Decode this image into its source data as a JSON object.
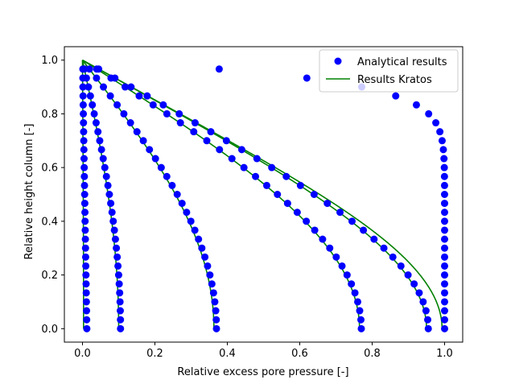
{
  "chart_data": {
    "type": "scatter",
    "title": "",
    "xlabel": "Relative excess pore pressure [-]",
    "ylabel": "Relative height column [-]",
    "xlim": [
      -0.05,
      1.05
    ],
    "ylim": [
      -0.05,
      1.05
    ],
    "xticks": [
      0.0,
      0.2,
      0.4,
      0.6,
      0.8,
      1.0
    ],
    "yticks": [
      0.0,
      0.2,
      0.4,
      0.6,
      0.8,
      1.0
    ],
    "xtick_labels": [
      "0.0",
      "0.2",
      "0.4",
      "0.6",
      "0.8",
      "1.0"
    ],
    "ytick_labels": [
      "0.0",
      "0.2",
      "0.4",
      "0.6",
      "0.8",
      "1.0"
    ],
    "grid": false,
    "legend_position": "top-right",
    "legend": [
      {
        "label": "Analytical results",
        "marker": "circle",
        "color": "#0000ff"
      },
      {
        "label": "Results Kratos",
        "marker": "line",
        "color": "#008000"
      }
    ],
    "colors": {
      "analytical": "#0000ff",
      "kratos": "#008000"
    },
    "y_points": [
      0.0,
      0.0333,
      0.0667,
      0.1,
      0.1333,
      0.1667,
      0.2,
      0.2333,
      0.2667,
      0.3,
      0.3333,
      0.3667,
      0.4,
      0.4333,
      0.4667,
      0.5,
      0.5333,
      0.5667,
      0.6,
      0.6333,
      0.6667,
      0.7,
      0.7333,
      0.7667,
      0.8,
      0.8333,
      0.8667,
      0.9,
      0.9333,
      0.9667
    ],
    "analytical_series": [
      {
        "bottom_pressure": 0.012,
        "nearly_zero": true
      },
      {
        "bottom_pressure": 0.105
      },
      {
        "bottom_pressure": 0.37
      },
      {
        "bottom_pressure": 0.77
      },
      {
        "bottom_pressure": 0.955
      },
      {
        "bottom_pressure": 1.0
      }
    ],
    "kratos_series": [
      {
        "bottom_pressure": 0.003
      },
      {
        "bottom_pressure": 0.1
      },
      {
        "bottom_pressure": 0.363
      },
      {
        "bottom_pressure": 0.765
      },
      {
        "bottom_pressure": 0.95
      },
      {
        "bottom_pressure": 0.993
      }
    ]
  }
}
